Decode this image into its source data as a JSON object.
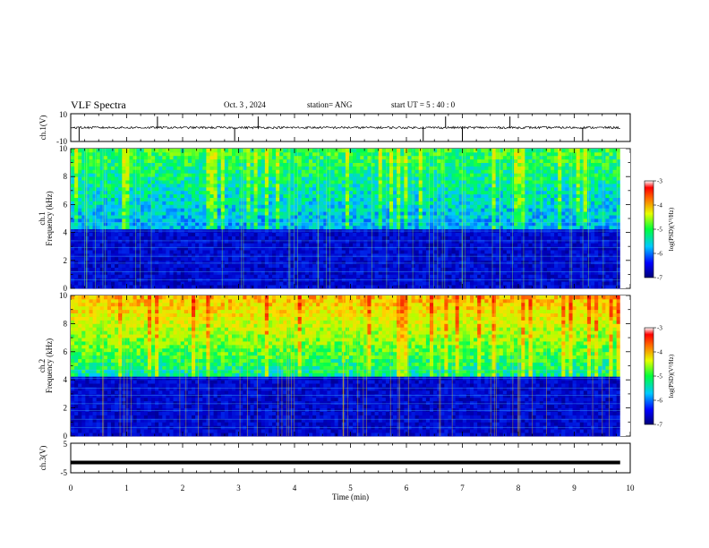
{
  "header": {
    "title": "VLF Spectra",
    "date": "Oct. 3  , 2024",
    "station": "station= ANG",
    "start": "start  UT  =   5  : 40 : 0"
  },
  "chart_data": [
    {
      "type": "line",
      "panel": "ch1_voltage",
      "ylabel": "ch.1(V)",
      "ylim": [
        -10,
        10
      ],
      "yticks": [
        "10",
        "-10"
      ],
      "baseline": 0,
      "spikes_min": [
        0.15,
        1.55,
        2.93,
        3.35,
        6.3,
        6.7,
        7.0,
        7.85,
        9.15
      ],
      "grid": false
    },
    {
      "type": "heatmap",
      "panel": "ch1_spectrogram",
      "ylabel": "ch.1\nFrequency (kHz)",
      "ylim": [
        0,
        10
      ],
      "yticks": [
        "0",
        "2",
        "4",
        "6",
        "8",
        "10"
      ],
      "colorbar": {
        "label": "log(PSD)(V²/Hz)",
        "ticks": [
          "-3",
          "-4",
          "-5",
          "-6",
          "-7"
        ],
        "range": [
          -7,
          -3
        ]
      }
    },
    {
      "type": "heatmap",
      "panel": "ch2_spectrogram",
      "ylabel": "ch.2\nFrequency (kHz)",
      "ylim": [
        0,
        10
      ],
      "yticks": [
        "0",
        "2",
        "4",
        "6",
        "8",
        "10"
      ],
      "colorbar": {
        "label": "log(PSD)(V²/Hz)",
        "ticks": [
          "-3",
          "-4",
          "-5",
          "-6",
          "-7"
        ],
        "range": [
          -7,
          -3
        ]
      }
    },
    {
      "type": "line",
      "panel": "ch3_voltage",
      "ylabel": "ch.3(V)",
      "ylim": [
        -5,
        5
      ],
      "yticks": [
        "5",
        "-5"
      ],
      "baseline": -1.5,
      "xlabel": "Time (min)",
      "xlim": [
        0,
        10
      ],
      "xticks": [
        "0",
        "1",
        "2",
        "3",
        "4",
        "5",
        "6",
        "7",
        "8",
        "9",
        "10"
      ]
    }
  ]
}
